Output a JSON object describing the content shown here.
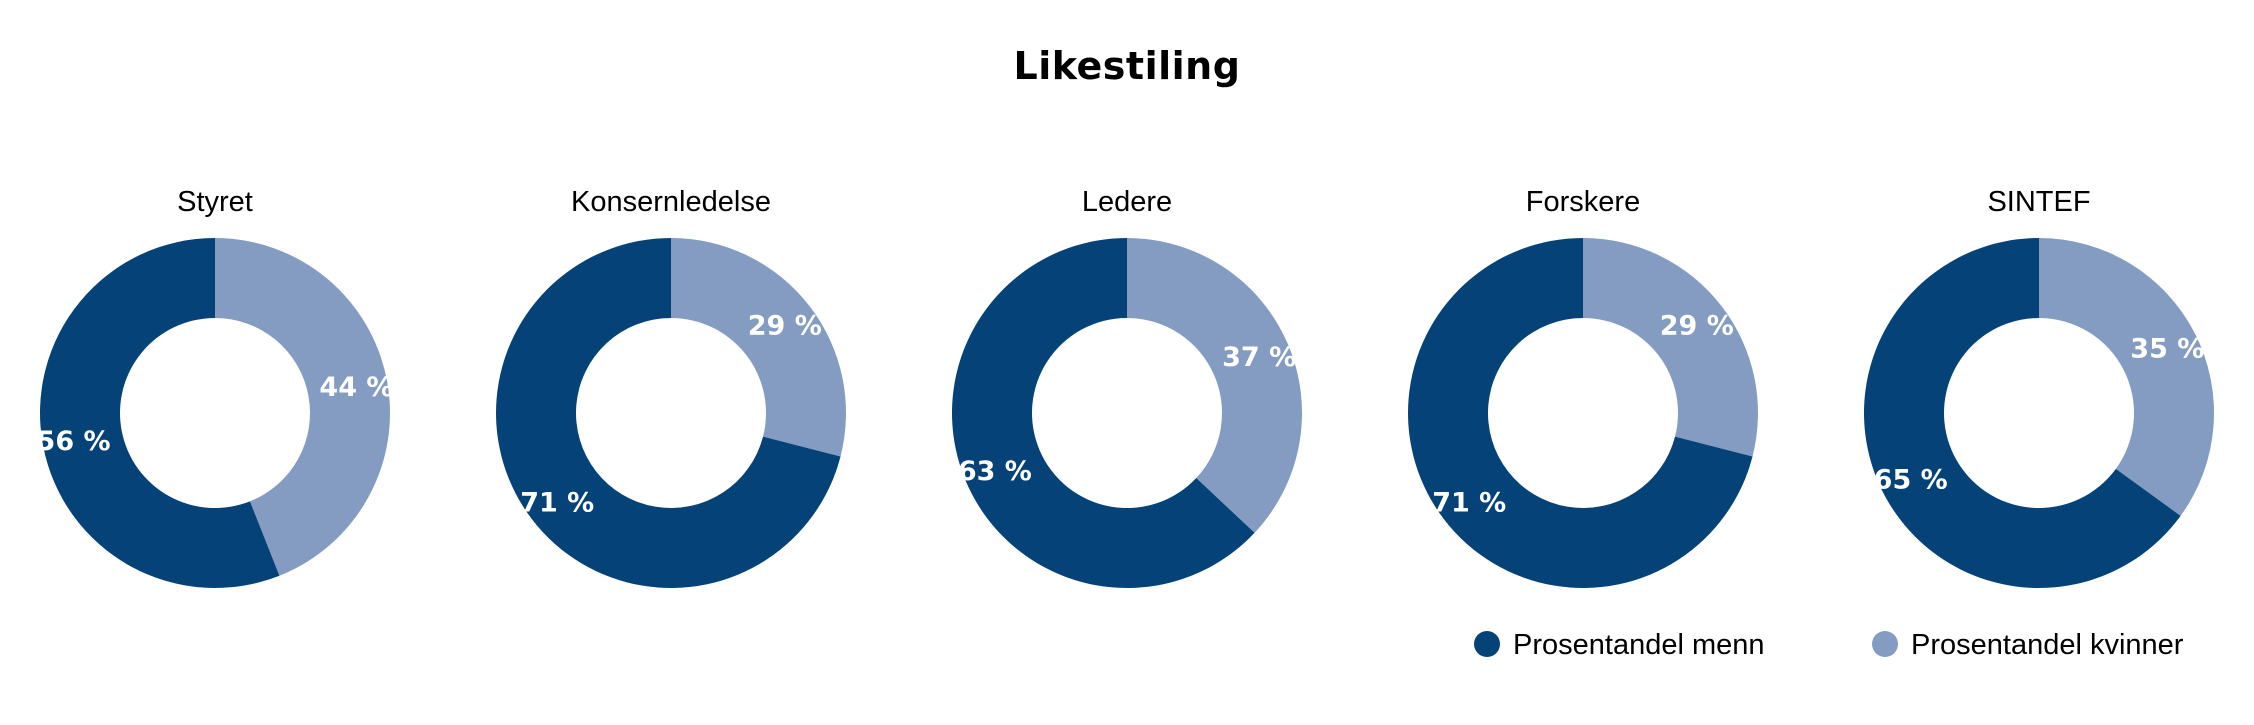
{
  "colors": {
    "men": "#044278",
    "women": "#849cc1",
    "text": "#000000",
    "label": "#ffffff"
  },
  "chart_data": {
    "type": "pie",
    "variant": "donut",
    "title": "Likestiling",
    "series_names": [
      "Prosentandel menn",
      "Prosentandel kvinner"
    ],
    "legend_position": "bottom-right",
    "charts": [
      {
        "name": "Styret",
        "men": 56,
        "women": 44,
        "men_label": "56 %",
        "women_label": "44 %"
      },
      {
        "name": "Konsernledelse",
        "men": 71,
        "women": 29,
        "men_label": "71 %",
        "women_label": "29 %"
      },
      {
        "name": "Ledere",
        "men": 63,
        "women": 37,
        "men_label": "63 %",
        "women_label": "37 %"
      },
      {
        "name": "Forskere",
        "men": 71,
        "women": 29,
        "men_label": "71 %",
        "women_label": "29 %"
      },
      {
        "name": "SINTEF",
        "men": 65,
        "women": 35,
        "men_label": "65 %",
        "women_label": "35 %"
      }
    ]
  }
}
